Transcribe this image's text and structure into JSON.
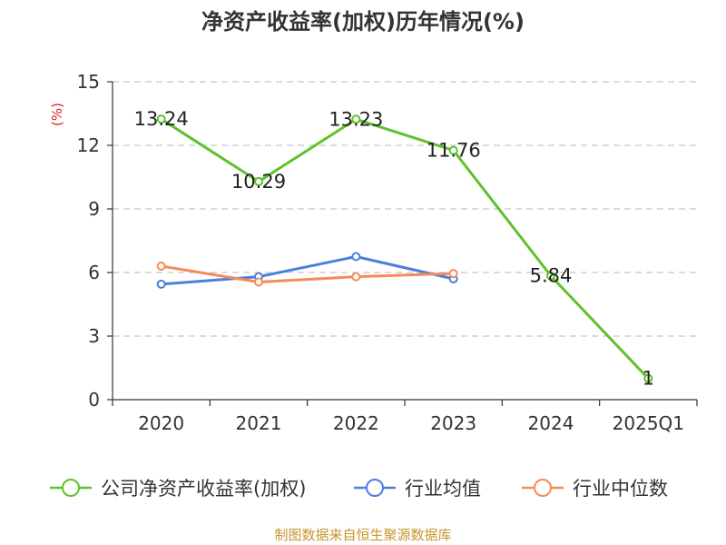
{
  "chart_data": {
    "type": "line",
    "title": "净资产收益率(加权)历年情况(%)",
    "ylabel": "(%)",
    "xlabel": "",
    "ylim": [
      0,
      15
    ],
    "yticks": [
      0,
      3,
      6,
      9,
      12,
      15
    ],
    "grid": true,
    "legend_position": "bottom",
    "categories": [
      "2020",
      "2021",
      "2022",
      "2023",
      "2024",
      "2025Q1"
    ],
    "series": [
      {
        "name": "公司净资产收益率(加权)",
        "color": "#5ec22a",
        "values": [
          13.24,
          10.29,
          13.23,
          11.76,
          5.84,
          1
        ],
        "labels": [
          "13.24",
          "10.29",
          "13.23",
          "11.76",
          "5.84",
          "1"
        ]
      },
      {
        "name": "行业均值",
        "color": "#4a7fdc",
        "values": [
          5.45,
          5.8,
          6.75,
          5.7,
          null,
          null
        ]
      },
      {
        "name": "行业中位数",
        "color": "#f58b5a",
        "values": [
          6.3,
          5.55,
          5.8,
          5.95,
          null,
          null
        ]
      }
    ]
  },
  "source": "制图数据来自恒生聚源数据库"
}
